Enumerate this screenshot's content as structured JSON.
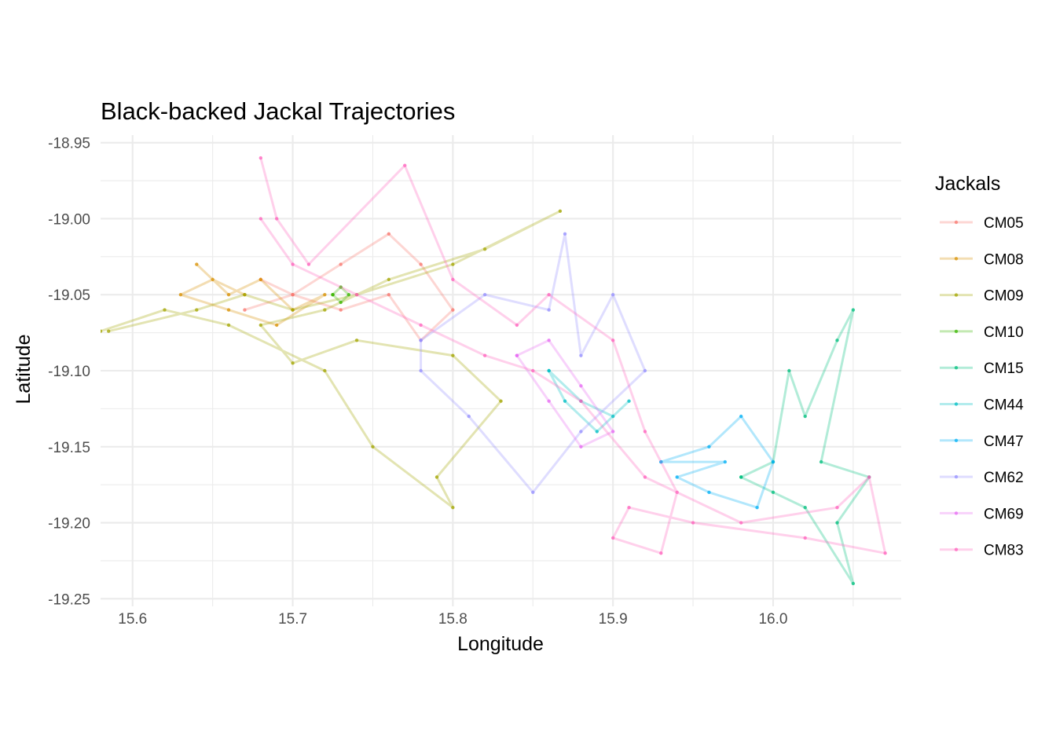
{
  "chart_data": {
    "type": "line",
    "title": "Black-backed Jackal Trajectories",
    "xlabel": "Longitude",
    "ylabel": "Latitude",
    "xlim": [
      15.58,
      16.08
    ],
    "ylim": [
      -19.255,
      -18.945
    ],
    "x_ticks": [
      15.6,
      15.7,
      15.8,
      15.9,
      16.0
    ],
    "x_tick_labels": [
      "15.6",
      "15.7",
      "15.8",
      "15.9",
      "16.0"
    ],
    "y_ticks": [
      -18.95,
      -19.0,
      -19.05,
      -19.1,
      -19.15,
      -19.2,
      -19.25
    ],
    "y_tick_labels": [
      "-18.95",
      "-19.00",
      "-19.05",
      "-19.10",
      "-19.15",
      "-19.20",
      "-19.25"
    ],
    "grid": true,
    "legend_position": "right",
    "legend_title": "Jackals",
    "series": [
      {
        "name": "CM05",
        "color": "#F8766D",
        "points": [
          [
            15.68,
            -19.04
          ],
          [
            15.7,
            -19.05
          ],
          [
            15.73,
            -19.03
          ],
          [
            15.76,
            -19.01
          ],
          [
            15.78,
            -19.03
          ],
          [
            15.8,
            -19.06
          ],
          [
            15.78,
            -19.08
          ],
          [
            15.76,
            -19.05
          ],
          [
            15.73,
            -19.06
          ],
          [
            15.7,
            -19.05
          ],
          [
            15.67,
            -19.06
          ]
        ]
      },
      {
        "name": "CM08",
        "color": "#D89000",
        "points": [
          [
            15.64,
            -19.03
          ],
          [
            15.66,
            -19.05
          ],
          [
            15.68,
            -19.04
          ],
          [
            15.7,
            -19.06
          ],
          [
            15.72,
            -19.05
          ],
          [
            15.69,
            -19.07
          ],
          [
            15.66,
            -19.06
          ],
          [
            15.63,
            -19.05
          ],
          [
            15.65,
            -19.04
          ],
          [
            15.67,
            -19.05
          ]
        ]
      },
      {
        "name": "CM09",
        "color": "#A3A500",
        "points": [
          [
            15.585,
            -19.074
          ],
          [
            15.64,
            -19.06
          ],
          [
            15.67,
            -19.05
          ],
          [
            15.7,
            -19.06
          ],
          [
            15.74,
            -19.05
          ],
          [
            15.8,
            -19.03
          ],
          [
            15.867,
            -18.995
          ],
          [
            15.82,
            -19.02
          ],
          [
            15.76,
            -19.04
          ],
          [
            15.72,
            -19.06
          ],
          [
            15.68,
            -19.07
          ],
          [
            15.7,
            -19.095
          ],
          [
            15.74,
            -19.08
          ],
          [
            15.8,
            -19.09
          ],
          [
            15.83,
            -19.12
          ],
          [
            15.79,
            -19.17
          ],
          [
            15.8,
            -19.19
          ],
          [
            15.75,
            -19.15
          ],
          [
            15.72,
            -19.1
          ],
          [
            15.66,
            -19.07
          ],
          [
            15.62,
            -19.06
          ],
          [
            15.58,
            -19.074
          ]
        ]
      },
      {
        "name": "CM10",
        "color": "#39B600",
        "points": [
          [
            15.725,
            -19.05
          ],
          [
            15.73,
            -19.045
          ],
          [
            15.735,
            -19.05
          ],
          [
            15.73,
            -19.055
          ],
          [
            15.725,
            -19.05
          ]
        ]
      },
      {
        "name": "CM15",
        "color": "#00BF7D",
        "points": [
          [
            15.98,
            -19.17
          ],
          [
            16.0,
            -19.16
          ],
          [
            16.01,
            -19.1
          ],
          [
            16.02,
            -19.13
          ],
          [
            16.04,
            -19.08
          ],
          [
            16.05,
            -19.06
          ],
          [
            16.03,
            -19.16
          ],
          [
            16.06,
            -19.17
          ],
          [
            16.04,
            -19.2
          ],
          [
            16.05,
            -19.24
          ],
          [
            16.02,
            -19.19
          ],
          [
            16.0,
            -19.18
          ],
          [
            15.98,
            -19.17
          ]
        ]
      },
      {
        "name": "CM44",
        "color": "#00BFC4",
        "points": [
          [
            15.86,
            -19.1
          ],
          [
            15.88,
            -19.12
          ],
          [
            15.9,
            -19.13
          ],
          [
            15.91,
            -19.12
          ],
          [
            15.89,
            -19.14
          ],
          [
            15.87,
            -19.12
          ],
          [
            15.86,
            -19.1
          ]
        ]
      },
      {
        "name": "CM47",
        "color": "#00B0F6",
        "points": [
          [
            15.93,
            -19.16
          ],
          [
            15.96,
            -19.15
          ],
          [
            15.98,
            -19.13
          ],
          [
            16.0,
            -19.16
          ],
          [
            15.99,
            -19.19
          ],
          [
            15.96,
            -19.18
          ],
          [
            15.94,
            -19.17
          ],
          [
            15.97,
            -19.16
          ],
          [
            15.93,
            -19.16
          ]
        ]
      },
      {
        "name": "CM62",
        "color": "#9590FF",
        "points": [
          [
            15.78,
            -19.08
          ],
          [
            15.82,
            -19.05
          ],
          [
            15.86,
            -19.06
          ],
          [
            15.87,
            -19.01
          ],
          [
            15.88,
            -19.09
          ],
          [
            15.9,
            -19.05
          ],
          [
            15.92,
            -19.1
          ],
          [
            15.88,
            -19.14
          ],
          [
            15.85,
            -19.18
          ],
          [
            15.81,
            -19.13
          ],
          [
            15.78,
            -19.1
          ],
          [
            15.78,
            -19.08
          ]
        ]
      },
      {
        "name": "CM69",
        "color": "#E76BF3",
        "points": [
          [
            15.84,
            -19.09
          ],
          [
            15.86,
            -19.08
          ],
          [
            15.88,
            -19.11
          ],
          [
            15.9,
            -19.14
          ],
          [
            15.88,
            -19.15
          ],
          [
            15.86,
            -19.12
          ],
          [
            15.84,
            -19.09
          ]
        ]
      },
      {
        "name": "CM83",
        "color": "#FF62BC",
        "points": [
          [
            15.68,
            -18.96
          ],
          [
            15.69,
            -19.0
          ],
          [
            15.71,
            -19.03
          ],
          [
            15.77,
            -18.965
          ],
          [
            15.8,
            -19.04
          ],
          [
            15.84,
            -19.07
          ],
          [
            15.86,
            -19.05
          ],
          [
            15.9,
            -19.08
          ],
          [
            15.92,
            -19.14
          ],
          [
            15.94,
            -19.18
          ],
          [
            15.93,
            -19.22
          ],
          [
            15.9,
            -19.21
          ],
          [
            15.91,
            -19.19
          ],
          [
            15.95,
            -19.2
          ],
          [
            16.02,
            -19.21
          ],
          [
            16.07,
            -19.22
          ],
          [
            16.06,
            -19.17
          ],
          [
            16.04,
            -19.19
          ],
          [
            15.98,
            -19.2
          ],
          [
            15.92,
            -19.17
          ],
          [
            15.88,
            -19.12
          ],
          [
            15.85,
            -19.1
          ],
          [
            15.82,
            -19.09
          ],
          [
            15.78,
            -19.07
          ],
          [
            15.74,
            -19.05
          ],
          [
            15.7,
            -19.03
          ],
          [
            15.68,
            -19.0
          ]
        ]
      }
    ]
  }
}
